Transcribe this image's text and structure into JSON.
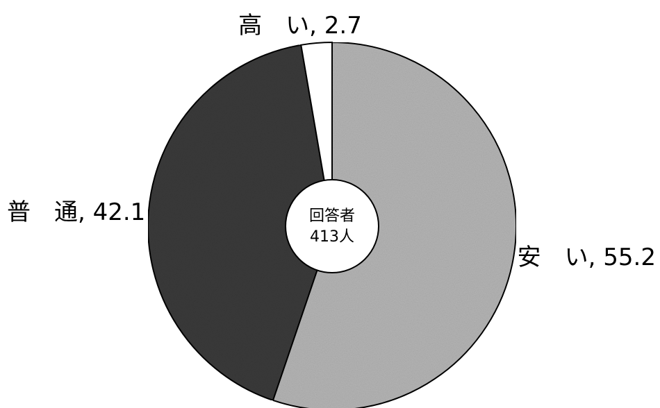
{
  "chart_data": {
    "type": "pie",
    "style": "donut",
    "start": "12 o'clock",
    "direction": "clockwise",
    "slices": [
      {
        "label": "安　い",
        "value": 55.2,
        "display": "安　い, 55.2",
        "color": "#b4b4b4"
      },
      {
        "label": "普　通",
        "value": 42.1,
        "display": "普　通, 42.1",
        "color": "#3a3a3a"
      },
      {
        "label": "高　い",
        "value": 2.7,
        "display": "高　い, 2.7",
        "color": "#ffffff"
      }
    ],
    "center": {
      "line1": "回答者",
      "line2": "413人"
    },
    "legend": "none",
    "grid": false
  }
}
